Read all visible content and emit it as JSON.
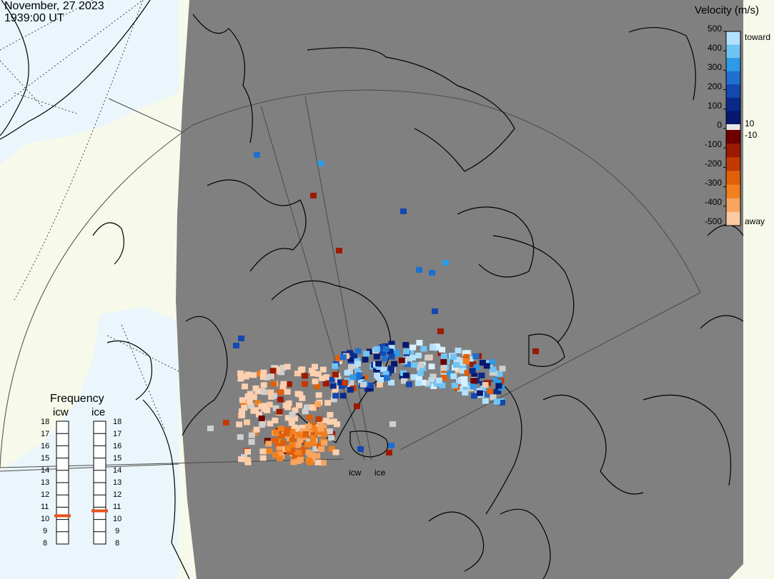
{
  "header": {
    "date": "November, 27 2023",
    "time": "1939:00 UT"
  },
  "colorbar": {
    "title": "Velocity (m/s)",
    "toward_label": "toward",
    "away_label": "away",
    "small_pos_label": "10",
    "small_neg_label": "-10",
    "ticks": [
      "500",
      "400",
      "300",
      "200",
      "100",
      "0",
      "-100",
      "-200",
      "-300",
      "-400",
      "-500"
    ],
    "toward_colors": [
      "#b3e2ff",
      "#6fc4f5",
      "#2f9ae6",
      "#1f6fd0",
      "#1248b0",
      "#0a2a8a",
      "#061870"
    ],
    "away_colors": [
      "#6e0000",
      "#9b1a00",
      "#c23a00",
      "#e0600a",
      "#f2801e",
      "#f8a560",
      "#fccaa0"
    ],
    "zero_color": "#e8e8e8"
  },
  "frequency": {
    "title": "Frequency",
    "radar_a": "icw",
    "radar_b": "ice",
    "ticks": [
      "18",
      "17",
      "16",
      "15",
      "14",
      "13",
      "12",
      "11",
      "10",
      "9",
      "8"
    ],
    "radar_a_mhz": 10.3,
    "radar_b_mhz": 10.7,
    "marker_color": "#e8501a"
  },
  "radars": {
    "label_a": "icw",
    "label_b": "ice"
  },
  "map": {
    "night_color": "#808080",
    "day_color": "#f7f9ea",
    "ocean_color": "#eaf6fb",
    "coast_color": "#000000",
    "grid_color": "#4a4a4a"
  }
}
